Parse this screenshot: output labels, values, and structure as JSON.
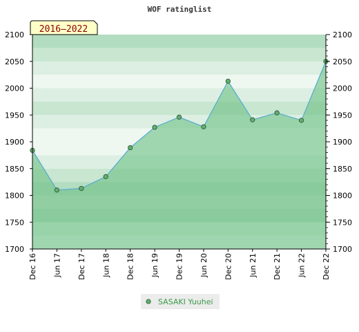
{
  "chart_data": {
    "type": "area",
    "title": "WOF ratinglist",
    "period_label": "2016–2022",
    "categories": [
      "Dec 16",
      "Jun 17",
      "Dec 17",
      "Jun 18",
      "Dec 18",
      "Jun 19",
      "Dec 19",
      "Jun 20",
      "Dec 20",
      "Jun 21",
      "Dec 21",
      "Jun 22",
      "Dec 22"
    ],
    "series": [
      {
        "name": "SASAKI Yuuhei",
        "values": [
          1884,
          1810,
          1813,
          1835,
          1889,
          1927,
          1946,
          1928,
          2013,
          1941,
          1954,
          1940,
          2050
        ]
      }
    ],
    "ylim": [
      1700,
      2100
    ],
    "yticks": [
      "1700",
      "1750",
      "1800",
      "1850",
      "1900",
      "1950",
      "2000",
      "2050",
      "2100"
    ],
    "xlabel": "",
    "ylabel": "",
    "grid": true,
    "legend": "bottom-center",
    "colors": {
      "line": "#5aaed0",
      "marker": "#5fb06e",
      "fill": "#6cbf84",
      "band_dark": "#b3ddc0",
      "band_mid": "#c8e6d0",
      "band_light": "#dcefe2",
      "band_lightest": "#eef7f0",
      "label_box": "#ffffc8",
      "label_text": "#8b0000",
      "legend_text": "#3a9a4a"
    }
  }
}
